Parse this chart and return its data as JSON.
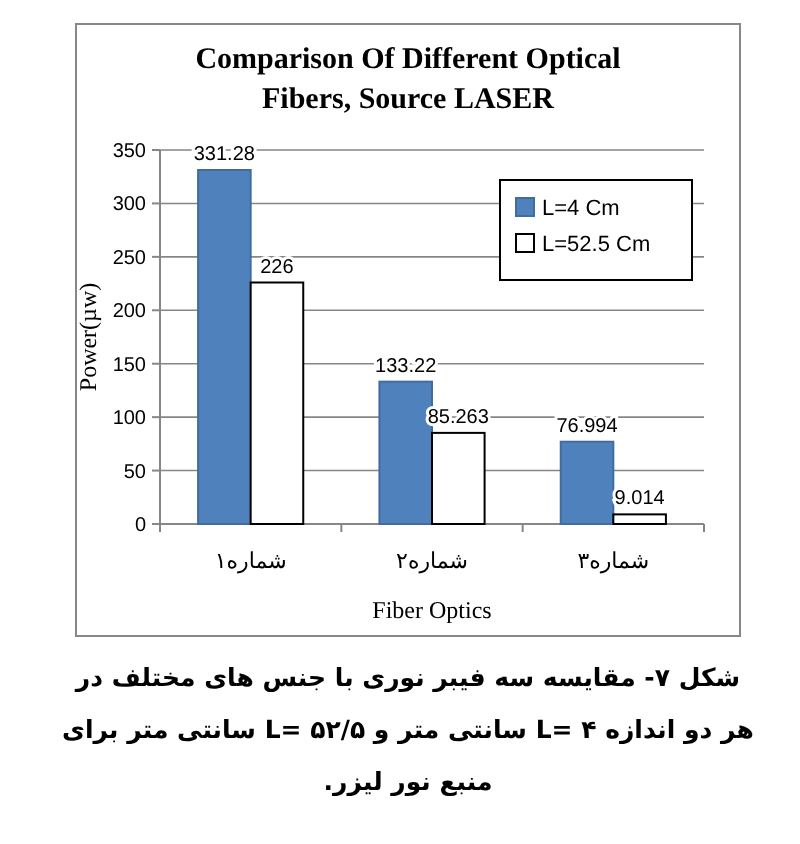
{
  "chart_data": {
    "type": "bar",
    "title": "Comparison  Of Different Optical Fibers, Source LASER",
    "xlabel": "Fiber Optics",
    "ylabel": "Power(µw)",
    "categories": [
      "شماره۱",
      "شماره۲",
      "شماره۳"
    ],
    "series": [
      {
        "name": "L=4 Cm",
        "color": "#4f81bd",
        "values": [
          331.28,
          133.22,
          76.994
        ]
      },
      {
        "name": "L=52.5 Cm",
        "color": "#ffffff",
        "values": [
          226,
          85.263,
          9.014
        ]
      }
    ],
    "ylim": [
      0,
      350
    ],
    "yticks": [
      0,
      50,
      100,
      150,
      200,
      250,
      300,
      350
    ],
    "grid": "y",
    "legend": "top right",
    "data_labels": true,
    "annotations": [
      "شکل ۷- مقایسه سه فیبر نوری با جنس های مختلف در",
      "هر دو اندازه L= ۴ سانتی متر و L=  ۵۲/۵ سانتی متر برای",
      "منبع نور لیزر."
    ]
  }
}
